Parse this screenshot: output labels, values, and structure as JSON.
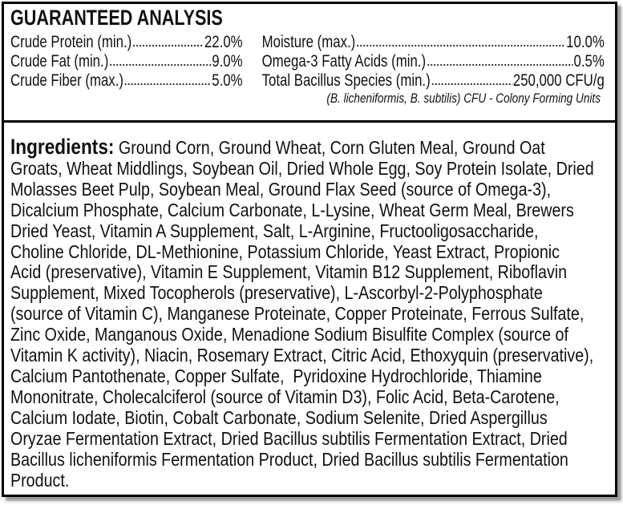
{
  "guaranteed_analysis": {
    "title": "GUARANTEED ANALYSIS",
    "left": [
      {
        "label": "Crude Protein (min.)",
        "value": "22.0%"
      },
      {
        "label": "Crude Fat (min.)",
        "value": "9.0%"
      },
      {
        "label": "Crude Fiber (max.)",
        "value": "5.0%"
      }
    ],
    "right": [
      {
        "label": "Moisture (max.)",
        "value": "10.0%"
      },
      {
        "label": "Omega-3 Fatty Acids (min.)",
        "value": "0.5%"
      },
      {
        "label": "Total Bacillus Species (min.)",
        "value": "250,000 CFU/g"
      }
    ],
    "note": "(B. licheniformis, B. subtilis) CFU - Colony Forming Units"
  },
  "ingredients": {
    "label": "Ingredients:",
    "lines": [
      "Ground Corn, Ground Wheat, Corn Gluten Meal, Ground Oat",
      "Groats, Wheat Middlings, Soybean Oil, Dried Whole Egg, Soy Protein Isolate, Dried",
      "Molasses Beet Pulp, Soybean Meal, Ground Flax Seed (source of Omega-3),",
      "Dicalcium Phosphate, Calcium Carbonate, L-Lysine, Wheat Germ Meal, Brewers",
      "Dried Yeast, Vitamin A Supplement, Salt, L-Arginine, Fructooligosaccharide,",
      "Choline Chloride, DL-Methionine, Potassium Chloride, Yeast Extract, Propionic",
      "Acid (preservative), Vitamin E Supplement, Vitamin B12 Supplement, Riboflavin",
      "Supplement, Mixed Tocopherols (preservative), L-Ascorbyl-2-Polyphosphate",
      "(source of Vitamin C), Manganese Proteinate, Copper Proteinate, Ferrous Sulfate,",
      "Zinc Oxide, Manganous Oxide, Menadione Sodium Bisulfite Complex (source of",
      "Vitamin K activity), Niacin, Rosemary Extract, Citric Acid, Ethoxyquin (preservative),",
      "Calcium Pantothenate, Copper Sulfate,  Pyridoxine Hydrochloride, Thiamine",
      "Mononitrate, Cholecalciferol (source of Vitamin D3), Folic Acid, Beta-Carotene,",
      "Calcium Iodate, Biotin, Cobalt Carbonate, Sodium Selenite, Dried Aspergillus",
      "Oryzae Fermentation Extract, Dried Bacillus subtilis Fermentation Extract, Dried",
      "Bacillus licheniformis Fermentation Product, Dried Bacillus subtilis Fermentation",
      "Product."
    ]
  }
}
